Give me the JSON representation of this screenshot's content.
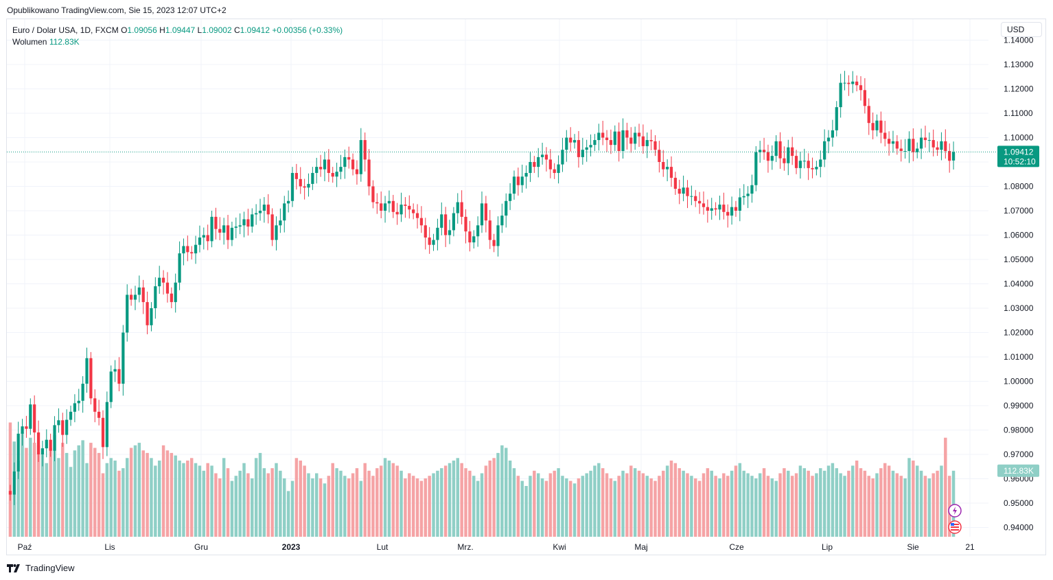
{
  "header": {
    "published": "Opublikowano TradingView.com, Sie 15, 2023 12:07 UTC+2"
  },
  "legend": {
    "symbol": "Euro / Dolar USA, 1D, FXCM",
    "o_label": "O",
    "o_value": "1.09056",
    "h_label": "H",
    "h_value": "1.09447",
    "l_label": "L",
    "l_value": "1.09002",
    "c_label": "C",
    "c_value": "1.09412",
    "change": "+0.00356 (+0.33%)",
    "volume_label": "Wolumen",
    "volume_value": "112.83K"
  },
  "currency_button": "USD",
  "footer": {
    "brand": "TradingView"
  },
  "colors": {
    "up": "#089981",
    "down": "#f23645",
    "up_vol": "#8fcfc6",
    "down_vol": "#f5a3a5",
    "grid": "#f0f3fa"
  },
  "chart_data": {
    "type": "candlestick",
    "title": "Euro / Dolar USA, 1D, FXCM",
    "y_axis": {
      "ticks": [
        "0.94000",
        "0.95000",
        "0.96000",
        "0.97000",
        "0.98000",
        "0.99000",
        "1.00000",
        "1.01000",
        "1.02000",
        "1.03000",
        "1.04000",
        "1.05000",
        "1.06000",
        "1.07000",
        "1.08000",
        "1.09000",
        "1.10000",
        "1.11000",
        "1.12000",
        "1.13000",
        "1.14000"
      ],
      "range": [
        0.935,
        1.1445
      ]
    },
    "x_axis": {
      "ticks": [
        {
          "label": "Paź",
          "bold": false
        },
        {
          "label": "Lis",
          "bold": false
        },
        {
          "label": "Gru",
          "bold": false
        },
        {
          "label": "2023",
          "bold": true
        },
        {
          "label": "Lut",
          "bold": false
        },
        {
          "label": "Mrz.",
          "bold": false
        },
        {
          "label": "Kwi",
          "bold": false
        },
        {
          "label": "Maj",
          "bold": false
        },
        {
          "label": "Cze",
          "bold": false
        },
        {
          "label": "Lip",
          "bold": false
        },
        {
          "label": "Sie",
          "bold": false
        },
        {
          "label": "21",
          "bold": false
        }
      ]
    },
    "last_price": {
      "value": 1.09412,
      "label": "1.09412",
      "countdown": "10:52:10"
    },
    "volume_last_label": "112.83K",
    "series": [
      {
        "name": "Close",
        "values": [
          0.9535,
          0.963,
          0.9785,
          0.9815,
          0.9805,
          0.9905,
          0.979,
          0.97,
          0.9725,
          0.976,
          0.9715,
          0.982,
          0.984,
          0.978,
          0.9842,
          0.9875,
          0.991,
          0.992,
          0.999,
          1.0095,
          0.993,
          0.9875,
          0.985,
          0.973,
          0.9915,
          1.004,
          1.005,
          0.999,
          1.02,
          1.0355,
          1.0335,
          1.0355,
          1.0385,
          1.0325,
          1.023,
          1.03,
          1.039,
          1.0425,
          1.0405,
          1.036,
          1.0325,
          1.0405,
          1.0525,
          1.0555,
          1.053,
          1.0525,
          1.056,
          1.059,
          1.06,
          1.0575,
          1.0675,
          1.0625,
          1.061,
          1.064,
          1.058,
          1.063,
          1.0635,
          1.064,
          1.0665,
          1.0635,
          1.0685,
          1.069,
          1.07,
          1.0725,
          1.0685,
          1.058,
          1.064,
          1.066,
          1.073,
          1.074,
          1.0855,
          1.083,
          1.08,
          1.0795,
          1.081,
          1.0855,
          1.088,
          1.087,
          1.091,
          1.0855,
          1.084,
          1.086,
          1.088,
          1.092,
          1.091,
          1.087,
          1.085,
          1.099,
          1.091,
          1.08,
          1.0735,
          1.073,
          1.07,
          1.073,
          1.074,
          1.0695,
          1.0685,
          1.0725,
          1.072,
          1.0705,
          1.069,
          1.067,
          1.064,
          1.059,
          1.056,
          1.058,
          1.063,
          1.0685,
          1.06,
          1.062,
          1.069,
          1.0735,
          1.0675,
          1.0615,
          1.057,
          1.0595,
          1.064,
          1.073,
          1.066,
          1.058,
          1.0555,
          1.064,
          1.068,
          1.074,
          1.077,
          1.084,
          1.0805,
          1.084,
          1.0855,
          1.09,
          1.088,
          1.092,
          1.093,
          1.091,
          1.087,
          1.0855,
          1.089,
          1.095,
          1.1,
          1.098,
          1.099,
          1.092,
          1.095,
          1.096,
          1.097,
          1.099,
          1.102,
          1.1,
          1.099,
          1.097,
          1.1025,
          1.0945,
          1.103,
          1.1,
          1.0975,
          1.102,
          1.1005,
          1.0965,
          1.099,
          1.0985,
          1.095,
          1.09,
          1.087,
          1.088,
          1.0835,
          1.079,
          1.077,
          1.0795,
          1.076,
          1.076,
          1.074,
          1.073,
          1.0715,
          1.07,
          1.071,
          1.0705,
          1.0725,
          1.0695,
          1.068,
          1.0715,
          1.07,
          1.0755,
          1.076,
          1.077,
          1.0805,
          1.094,
          1.095,
          1.094,
          1.0905,
          1.0925,
          1.0985,
          1.0915,
          1.0895,
          1.096,
          1.0925,
          1.0875,
          1.0905,
          1.0905,
          1.0875,
          1.087,
          1.088,
          1.091,
          1.0985,
          1.1,
          1.103,
          1.1125,
          1.1225,
          1.1225,
          1.122,
          1.123,
          1.1215,
          1.1195,
          1.113,
          1.106,
          1.103,
          1.107,
          1.102,
          1.0995,
          1.0975,
          1.0985,
          1.0955,
          1.0945,
          1.0945,
          1.0995,
          1.094,
          1.0955,
          1.1,
          1.099,
          1.099,
          1.096,
          1.095,
          1.0985,
          1.0945,
          1.0905,
          1.0941
        ]
      },
      {
        "name": "Open",
        "values": [
          0.955,
          0.9535,
          0.963,
          0.9785,
          0.9815,
          0.9805,
          0.9905,
          0.979,
          0.97,
          0.9725,
          0.976,
          0.9715,
          0.982,
          0.984,
          0.978,
          0.9842,
          0.9875,
          0.991,
          0.992,
          0.999,
          1.0095,
          0.993,
          0.9875,
          0.985,
          0.973,
          0.9915,
          1.004,
          1.005,
          0.999,
          1.02,
          1.0355,
          1.0335,
          1.0355,
          1.0385,
          1.0325,
          1.023,
          1.03,
          1.039,
          1.0425,
          1.0405,
          1.036,
          1.0325,
          1.0405,
          1.0525,
          1.0555,
          1.053,
          1.0525,
          1.056,
          1.059,
          1.06,
          1.0575,
          1.0675,
          1.0625,
          1.061,
          1.064,
          1.058,
          1.063,
          1.0635,
          1.064,
          1.0665,
          1.0635,
          1.0685,
          1.069,
          1.07,
          1.0725,
          1.0685,
          1.058,
          1.064,
          1.066,
          1.073,
          1.074,
          1.0855,
          1.083,
          1.08,
          1.0795,
          1.081,
          1.0855,
          1.088,
          1.087,
          1.091,
          1.0855,
          1.084,
          1.086,
          1.088,
          1.092,
          1.091,
          1.087,
          1.085,
          1.099,
          1.091,
          1.08,
          1.0735,
          1.073,
          1.07,
          1.073,
          1.074,
          1.0695,
          1.0685,
          1.0725,
          1.072,
          1.0705,
          1.069,
          1.067,
          1.064,
          1.059,
          1.056,
          1.058,
          1.063,
          1.0685,
          1.06,
          1.062,
          1.069,
          1.0735,
          1.0675,
          1.0615,
          1.057,
          1.0595,
          1.064,
          1.073,
          1.066,
          1.058,
          1.0555,
          1.064,
          1.068,
          1.074,
          1.077,
          1.084,
          1.0805,
          1.084,
          1.0855,
          1.09,
          1.088,
          1.092,
          1.093,
          1.091,
          1.087,
          1.0855,
          1.089,
          1.095,
          1.1,
          1.098,
          1.099,
          1.092,
          1.095,
          1.096,
          1.097,
          1.099,
          1.102,
          1.1,
          1.099,
          1.097,
          1.1025,
          1.0945,
          1.103,
          1.1,
          1.0975,
          1.102,
          1.1005,
          1.0965,
          1.099,
          1.0985,
          1.095,
          1.09,
          1.087,
          1.088,
          1.0835,
          1.079,
          1.077,
          1.0795,
          1.076,
          1.076,
          1.074,
          1.073,
          1.0715,
          1.07,
          1.071,
          1.0705,
          1.0725,
          1.0695,
          1.068,
          1.0715,
          1.07,
          1.0755,
          1.076,
          1.077,
          1.0805,
          1.094,
          1.095,
          1.094,
          1.0905,
          1.0925,
          1.0985,
          1.0915,
          1.0895,
          1.096,
          1.0925,
          1.0875,
          1.0905,
          1.0905,
          1.0875,
          1.087,
          1.088,
          1.091,
          1.0985,
          1.1,
          1.103,
          1.1125,
          1.1225,
          1.1225,
          1.122,
          1.123,
          1.1215,
          1.1195,
          1.113,
          1.106,
          1.103,
          1.107,
          1.102,
          1.0995,
          1.0975,
          1.0985,
          1.0955,
          1.0945,
          1.0945,
          1.0995,
          1.094,
          1.0955,
          1.1,
          1.099,
          1.099,
          1.096,
          1.095,
          1.0985,
          1.0945,
          1.0906
        ]
      },
      {
        "name": "Volume",
        "values": [
          90,
          75,
          60,
          82,
          70,
          78,
          74,
          72,
          65,
          58,
          70,
          80,
          62,
          74,
          66,
          55,
          68,
          72,
          76,
          58,
          74,
          70,
          66,
          50,
          58,
          62,
          60,
          52,
          54,
          62,
          70,
          72,
          74,
          68,
          66,
          62,
          56,
          60,
          72,
          68,
          66,
          64,
          60,
          58,
          60,
          62,
          58,
          56,
          52,
          58,
          56,
          50,
          46,
          62,
          54,
          44,
          48,
          52,
          58,
          50,
          46,
          62,
          66,
          54,
          50,
          54,
          58,
          52,
          46,
          36,
          44,
          62,
          60,
          56,
          50,
          46,
          50,
          46,
          42,
          48,
          58,
          54,
          52,
          48,
          46,
          50,
          54,
          44,
          58,
          52,
          48,
          54,
          56,
          62,
          60,
          58,
          56,
          52,
          46,
          50,
          48,
          46,
          44,
          46,
          48,
          50,
          52,
          54,
          56,
          58,
          60,
          62,
          58,
          54,
          52,
          48,
          44,
          50,
          56,
          60,
          62,
          66,
          72,
          70,
          60,
          54,
          48,
          44,
          40,
          48,
          52,
          50,
          46,
          44,
          50,
          52,
          54,
          48,
          46,
          44,
          42,
          46,
          48,
          50,
          52,
          56,
          58,
          54,
          50,
          46,
          44,
          48,
          52,
          50,
          56,
          54,
          52,
          50,
          48,
          46,
          44,
          48,
          52,
          56,
          60,
          58,
          54,
          52,
          50,
          48,
          46,
          44,
          50,
          54,
          52,
          48,
          46,
          50,
          48,
          52,
          56,
          58,
          52,
          50,
          48,
          46,
          50,
          54,
          48,
          46,
          44,
          50,
          54,
          52,
          48,
          50,
          56,
          54,
          52,
          48,
          50,
          54,
          52,
          56,
          58,
          54,
          50,
          48,
          52,
          56,
          60,
          54,
          52,
          48,
          46,
          50,
          54,
          58,
          56,
          52,
          50,
          48,
          46,
          62,
          60,
          56,
          52,
          48,
          46,
          50,
          52,
          56,
          78,
          48,
          52
        ]
      }
    ]
  }
}
